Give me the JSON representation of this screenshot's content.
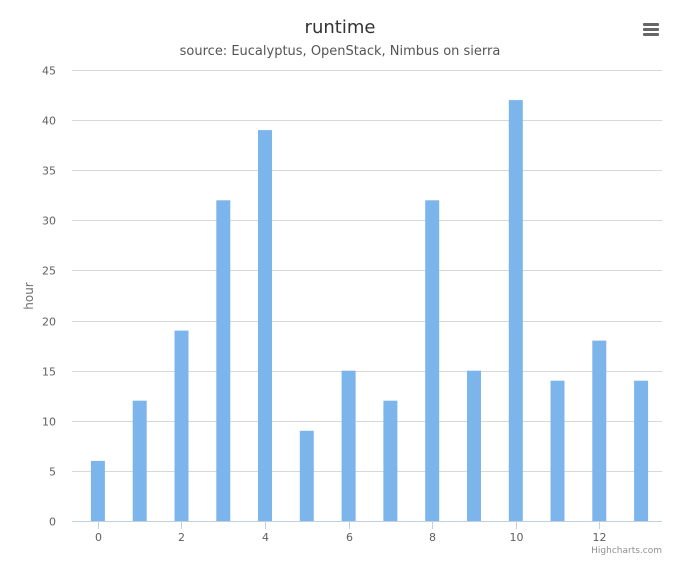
{
  "chart_data": {
    "type": "bar",
    "title": "runtime",
    "subtitle": "source: Eucalyptus, OpenStack, Nimbus on sierra",
    "xlabel": "",
    "ylabel": "hour",
    "x": [
      0,
      1,
      2,
      3,
      4,
      5,
      6,
      7,
      8,
      9,
      10,
      11,
      12,
      13
    ],
    "values": [
      6,
      12,
      19,
      32,
      39,
      9,
      15,
      12,
      32,
      15,
      42,
      14,
      18,
      14
    ],
    "xticks": [
      "0",
      "2",
      "4",
      "6",
      "8",
      "10",
      "12"
    ],
    "xtick_values": [
      0,
      2,
      4,
      6,
      8,
      10,
      12
    ],
    "yticks": [
      "0",
      "5",
      "10",
      "15",
      "20",
      "25",
      "30",
      "35",
      "40",
      "45"
    ],
    "ylim": [
      0,
      45
    ],
    "grid": true,
    "legend": "none",
    "bar_color": "#7cb5ec"
  },
  "credits": "Highcharts.com",
  "menu_icon": "hamburger-menu-icon"
}
